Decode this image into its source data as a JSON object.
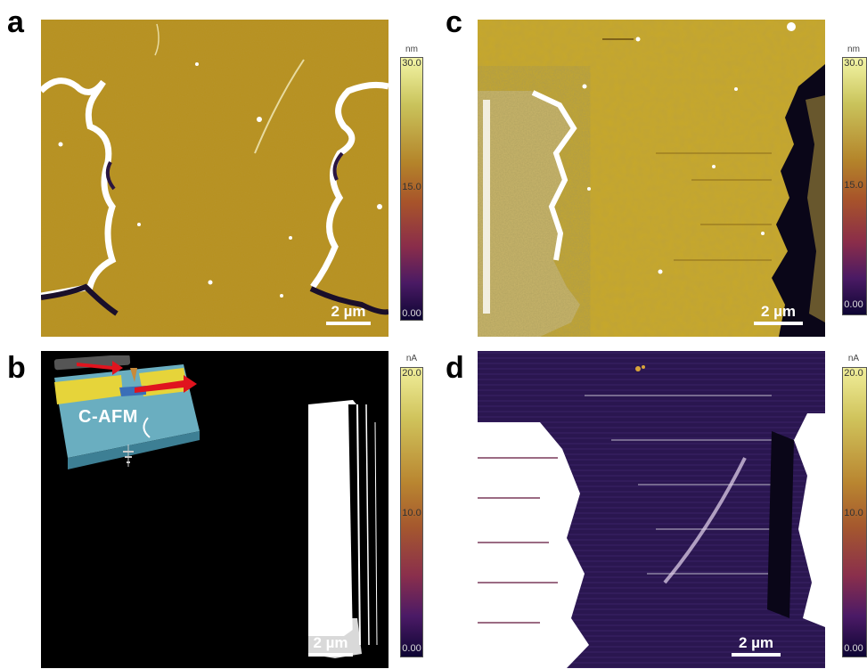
{
  "panels": {
    "a": {
      "letter": "a",
      "scale_bar": "2 µm",
      "colorbar": {
        "unit": "nm",
        "ticks": [
          "30.0",
          "15.0",
          "0.00"
        ]
      }
    },
    "b": {
      "letter": "b",
      "scale_bar": "2 µm",
      "colorbar": {
        "unit": "nA",
        "ticks": [
          "20.0",
          "10.0",
          "0.00"
        ]
      },
      "inset_label": "C-AFM"
    },
    "c": {
      "letter": "c",
      "scale_bar": "2 µm",
      "colorbar": {
        "unit": "nm",
        "ticks": [
          "30.0",
          "15.0",
          "0.00"
        ]
      }
    },
    "d": {
      "letter": "d",
      "scale_bar": "2 µm",
      "colorbar": {
        "unit": "nA",
        "ticks": [
          "20.0",
          "10.0",
          "0.00"
        ]
      }
    }
  },
  "colors": {
    "topography_base": "#b8901e",
    "current_background_b": "#000000",
    "current_background_d": "#2a1650",
    "conductive_region": "#ffffff"
  }
}
